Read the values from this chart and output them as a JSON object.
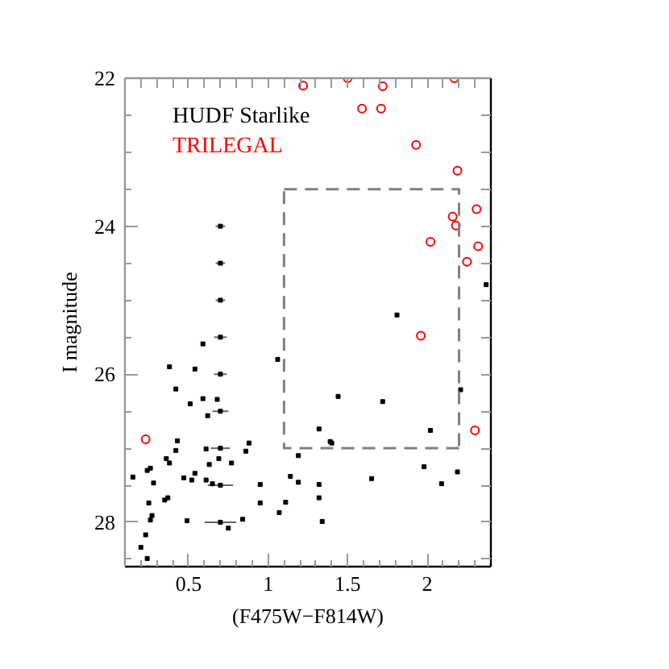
{
  "chart_data": {
    "type": "scatter",
    "xlabel": "(F475W−F814W)",
    "ylabel": "I magnitude",
    "xlim": [
      0.1,
      2.4
    ],
    "ylim": [
      28.6,
      22
    ],
    "xticks": [
      {
        "value": 0.2,
        "label": null
      },
      {
        "value": 0.3,
        "label": null
      },
      {
        "value": 0.4,
        "label": null
      },
      0.5,
      {
        "value": 0.6,
        "label": null
      },
      {
        "value": 0.7,
        "label": null
      },
      {
        "value": 0.8,
        "label": null
      },
      {
        "value": 0.9,
        "label": null
      },
      1,
      {
        "value": 1.1,
        "label": null
      },
      {
        "value": 1.2,
        "label": null
      },
      {
        "value": 1.3,
        "label": null
      },
      {
        "value": 1.4,
        "label": null
      },
      1.5,
      {
        "value": 1.6,
        "label": null
      },
      {
        "value": 1.7,
        "label": null
      },
      {
        "value": 1.8,
        "label": null
      },
      {
        "value": 1.9,
        "label": null
      },
      2,
      {
        "value": 2.1,
        "label": null
      },
      {
        "value": 2.2,
        "label": null
      },
      {
        "value": 2.3,
        "label": null
      }
    ],
    "yticks": [
      22,
      {
        "value": 22.5,
        "label": null
      },
      {
        "value": 23,
        "label": null
      },
      {
        "value": 23.5,
        "label": null
      },
      24,
      {
        "value": 24.5,
        "label": null
      },
      {
        "value": 25,
        "label": null
      },
      {
        "value": 25.5,
        "label": null
      },
      26,
      {
        "value": 26.5,
        "label": null
      },
      {
        "value": 27,
        "label": null
      },
      {
        "value": 27.5,
        "label": null
      },
      28,
      {
        "value": 28.5,
        "label": null
      }
    ],
    "legend": "top left",
    "series": [
      {
        "name": "HUDF Starlike",
        "color": "#000000",
        "marker": "square",
        "x": [
          0.59,
          0.38,
          0.54,
          0.42,
          0.51,
          0.59,
          0.68,
          0.62,
          0.43,
          0.42,
          0.61,
          0.36,
          0.38,
          0.69,
          0.77,
          0.63,
          0.88,
          0.86,
          0.15,
          0.24,
          0.26,
          0.28,
          0.47,
          0.52,
          0.54,
          0.61,
          0.65,
          0.25,
          0.35,
          0.37,
          0.26,
          0.27,
          0.49,
          0.75,
          0.84,
          0.23,
          0.2,
          0.24,
          0.95,
          0.95,
          1.06,
          1.14,
          1.19,
          1.19,
          1.11,
          1.07,
          1.81,
          1.44,
          1.72,
          2.21,
          1.32,
          2.02,
          1.39,
          1.4,
          1.32,
          1.65,
          1.98,
          2.09,
          2.19,
          1.32,
          1.34,
          2.37
        ],
        "values": [
          25.59,
          25.9,
          25.93,
          26.2,
          26.4,
          26.33,
          26.34,
          26.56,
          26.9,
          27.03,
          27.01,
          27.14,
          27.2,
          27.14,
          27.2,
          27.22,
          26.93,
          27.04,
          27.39,
          27.3,
          27.27,
          27.47,
          27.4,
          27.43,
          27.34,
          27.43,
          27.48,
          27.74,
          27.7,
          27.67,
          27.97,
          27.91,
          27.98,
          28.08,
          27.96,
          28.17,
          28.34,
          28.49,
          27.49,
          27.74,
          25.8,
          27.38,
          27.1,
          27.46,
          27.73,
          27.87,
          25.2,
          26.3,
          26.37,
          26.21,
          26.74,
          26.76,
          26.91,
          26.93,
          27.49,
          27.41,
          27.25,
          27.48,
          27.32,
          27.67,
          27.99,
          24.79
        ]
      },
      {
        "color": "#000000",
        "marker": "square",
        "x": [
          0.7,
          0.7,
          0.7,
          0.7,
          0.7,
          0.7,
          0.7,
          0.7,
          0.7
        ],
        "values": [
          24,
          24.5,
          25,
          25.5,
          26,
          26.5,
          27,
          27.5,
          28
        ],
        "xerrors": [
          0.03,
          0.03,
          0.03,
          0.04,
          0.04,
          0.05,
          0.06,
          0.08,
          0.1
        ]
      },
      {
        "name": "TRILEGAL",
        "color": "#ff0000",
        "marker": "circle",
        "x": [
          1.22,
          1.5,
          1.72,
          1.59,
          1.71,
          2.17,
          1.93,
          2.19,
          2.31,
          2.16,
          2.18,
          2.02,
          2.32,
          2.25,
          1.96,
          2.3,
          0.23
        ],
        "values": [
          22.1,
          22,
          22.11,
          22.41,
          22.41,
          22,
          22.9,
          23.25,
          23.77,
          23.87,
          23.99,
          24.21,
          24.27,
          24.48,
          25.48,
          26.76,
          26.88
        ]
      },
      {
        "type": "line",
        "color": "#808080",
        "line_style": "dashed",
        "marker": "none",
        "x": [
          1.1,
          2.2,
          2.2
        ],
        "values": [
          23.5,
          23.5,
          27
        ]
      },
      {
        "type": "line",
        "color": "#808080",
        "line_style": "dashed",
        "marker": "none",
        "x": [
          2.2,
          1.1,
          1.1
        ],
        "values": [
          27,
          27,
          23.5
        ]
      }
    ]
  }
}
